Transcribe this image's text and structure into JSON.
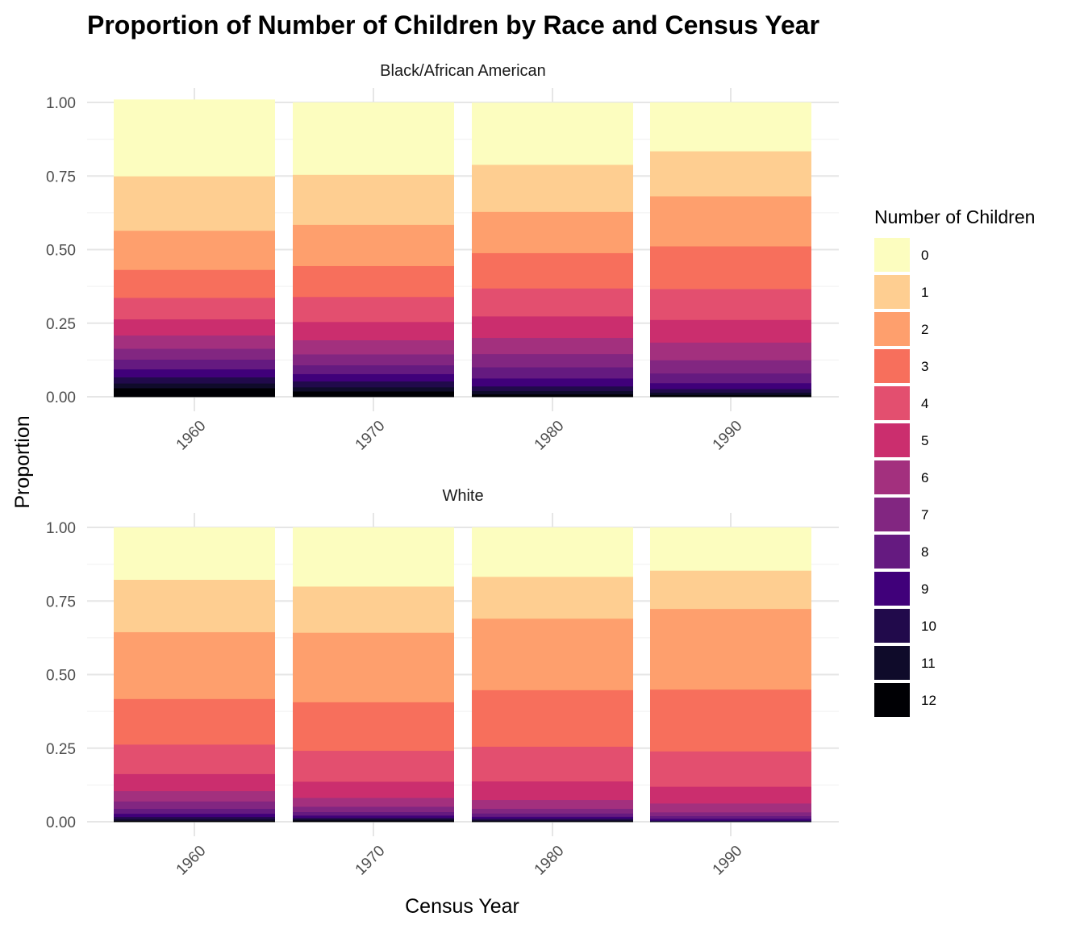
{
  "chart_data": {
    "type": "bar",
    "stacked": true,
    "title": "Proportion of Number of Children by Race and Census Year",
    "xlabel": "Census Year",
    "ylabel": "Proportion",
    "ylim": [
      0,
      1
    ],
    "y_ticks": [
      "0.00",
      "0.25",
      "0.50",
      "0.75",
      "1.00"
    ],
    "categories": [
      "1960",
      "1970",
      "1980",
      "1990"
    ],
    "legend": {
      "title": "Number of Children",
      "position": "right",
      "levels": [
        "0",
        "1",
        "2",
        "3",
        "4",
        "5",
        "6",
        "7",
        "8",
        "9",
        "10",
        "11",
        "12"
      ],
      "colors": [
        "#FCFDBF",
        "#FECE91",
        "#FE9F6D",
        "#F76F5C",
        "#E34F6F",
        "#CB2E6E",
        "#A3307E",
        "#822681",
        "#651A80",
        "#40007A",
        "#210A4B",
        "#0F0B2A",
        "#000004"
      ]
    },
    "facets": [
      {
        "label": "Black/African American",
        "series": [
          {
            "name": "0",
            "values": [
              0.26,
              0.245,
              0.21,
              0.165
            ]
          },
          {
            "name": "1",
            "values": [
              0.185,
              0.17,
              0.16,
              0.153
            ]
          },
          {
            "name": "2",
            "values": [
              0.133,
              0.14,
              0.14,
              0.17
            ]
          },
          {
            "name": "3",
            "values": [
              0.095,
              0.105,
              0.12,
              0.145
            ]
          },
          {
            "name": "4",
            "values": [
              0.073,
              0.085,
              0.095,
              0.105
            ]
          },
          {
            "name": "5",
            "values": [
              0.055,
              0.062,
              0.073,
              0.077
            ]
          },
          {
            "name": "6",
            "values": [
              0.045,
              0.048,
              0.055,
              0.06
            ]
          },
          {
            "name": "7",
            "values": [
              0.037,
              0.037,
              0.045,
              0.045
            ]
          },
          {
            "name": "8",
            "values": [
              0.033,
              0.03,
              0.038,
              0.033
            ]
          },
          {
            "name": "9",
            "values": [
              0.027,
              0.025,
              0.027,
              0.02
            ]
          },
          {
            "name": "10",
            "values": [
              0.021,
              0.02,
              0.016,
              0.012
            ]
          },
          {
            "name": "11",
            "values": [
              0.016,
              0.014,
              0.011,
              0.008
            ]
          },
          {
            "name": "12",
            "values": [
              0.03,
              0.019,
              0.009,
              0.007
            ]
          }
        ]
      },
      {
        "label": "White",
        "series": [
          {
            "name": "0",
            "values": [
              0.177,
              0.2,
              0.167,
              0.146
            ]
          },
          {
            "name": "1",
            "values": [
              0.178,
              0.157,
              0.142,
              0.13
            ]
          },
          {
            "name": "2",
            "values": [
              0.227,
              0.236,
              0.243,
              0.274
            ]
          },
          {
            "name": "3",
            "values": [
              0.155,
              0.165,
              0.192,
              0.21
            ]
          },
          {
            "name": "4",
            "values": [
              0.1,
              0.105,
              0.118,
              0.12
            ]
          },
          {
            "name": "5",
            "values": [
              0.058,
              0.055,
              0.063,
              0.057
            ]
          },
          {
            "name": "6",
            "values": [
              0.035,
              0.03,
              0.03,
              0.03
            ]
          },
          {
            "name": "7",
            "values": [
              0.025,
              0.018,
              0.016,
              0.013
            ]
          },
          {
            "name": "8",
            "values": [
              0.017,
              0.012,
              0.011,
              0.009
            ]
          },
          {
            "name": "9",
            "values": [
              0.011,
              0.008,
              0.007,
              0.006
            ]
          },
          {
            "name": "10",
            "values": [
              0.008,
              0.005,
              0.005,
              0.003
            ]
          },
          {
            "name": "11",
            "values": [
              0.005,
              0.004,
              0.003,
              0.001
            ]
          },
          {
            "name": "12",
            "values": [
              0.004,
              0.005,
              0.003,
              0.001
            ]
          }
        ]
      }
    ]
  }
}
